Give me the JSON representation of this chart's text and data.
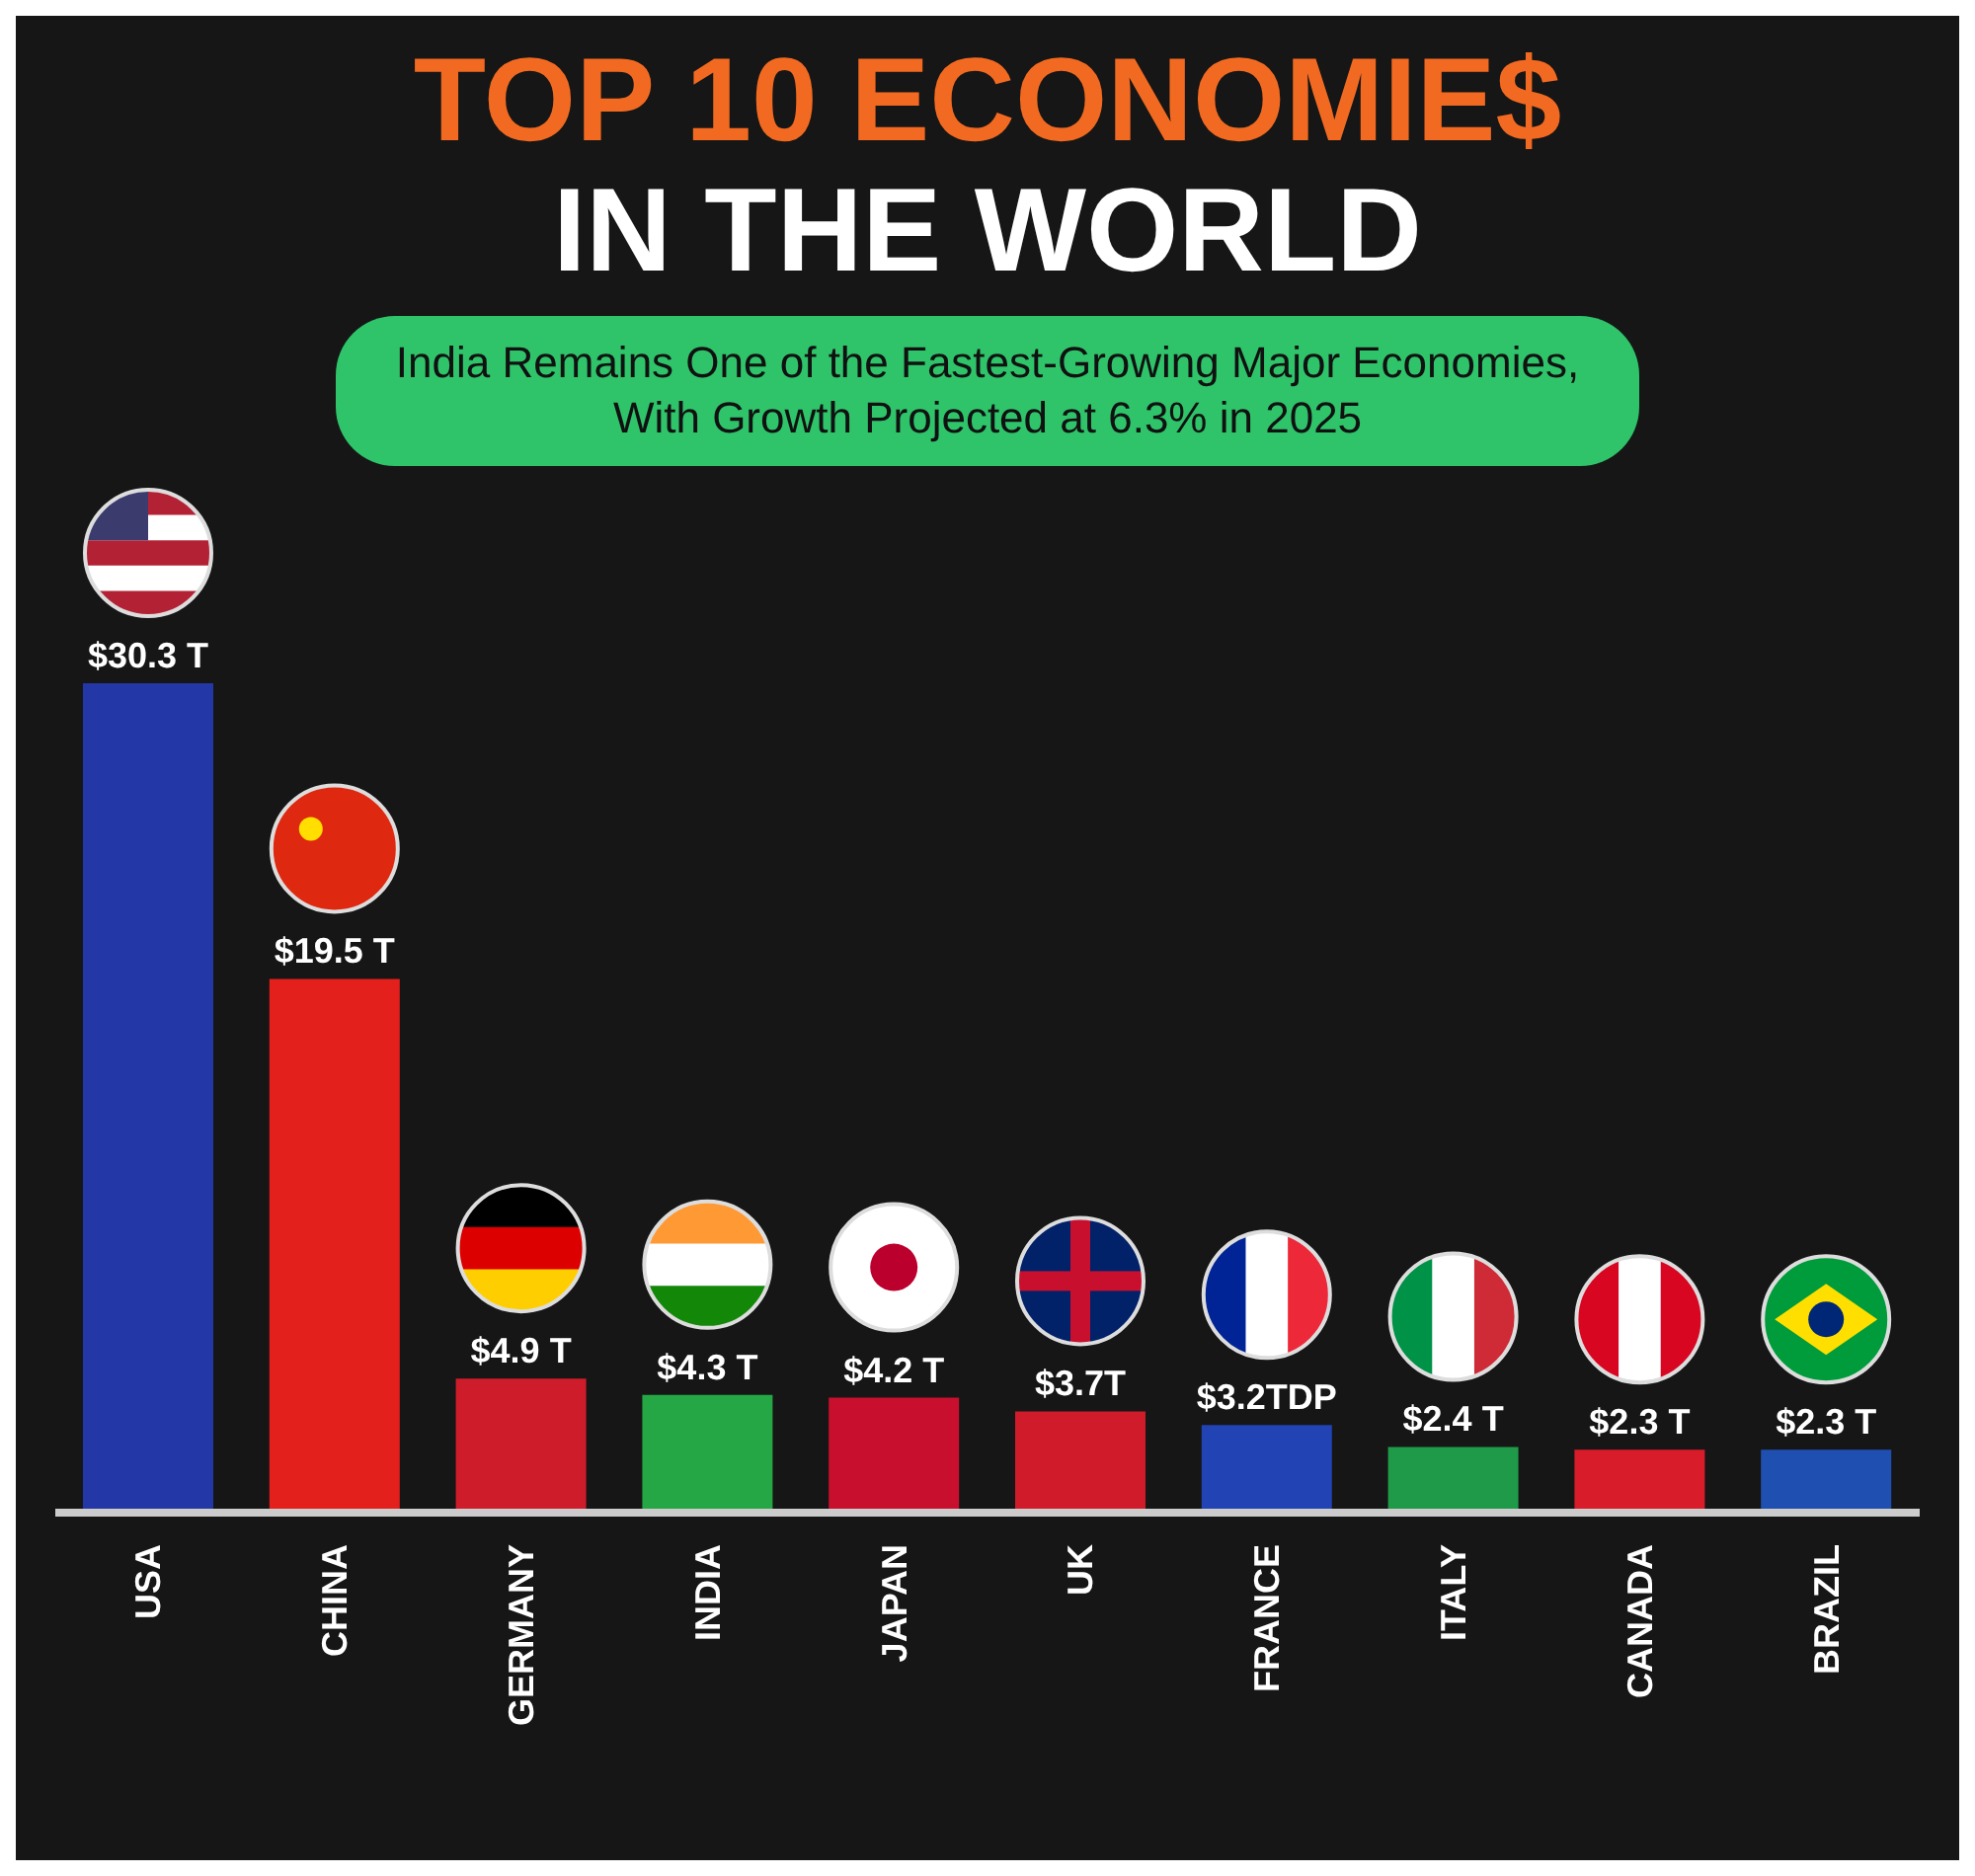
{
  "chart_data": {
    "type": "bar",
    "title": "TOP 10 ECONOMIE$",
    "subtitle": "IN THE WORLD",
    "annotations": [
      "India Remains One of the Fastest-Growing Major Economies, With Growth Projected at 6.3% in 2025"
    ],
    "categories": [
      "USA",
      "CHINA",
      "GERMANY",
      "INDIA",
      "JAPAN",
      "UK",
      "FRANCE",
      "ITALY",
      "CANADA",
      "BRAZIL"
    ],
    "values": [
      30.3,
      19.5,
      4.9,
      4.3,
      4.2,
      3.7,
      3.2,
      2.4,
      2.3,
      2.3
    ],
    "value_labels": [
      "$30.3 T",
      "$19.5 T",
      "$4.9 T",
      "$4.3 T",
      "$4.2 T",
      "$3.7T",
      "$3.2TDP",
      "$2.4 T",
      "$2.3 T",
      "$2.3 T"
    ],
    "colors": [
      "#2338a6",
      "#e3201c",
      "#cf1c2b",
      "#25a745",
      "#c8102e",
      "#d01c2a",
      "#2143b3",
      "#1f9a48",
      "#d81c2a",
      "#1f4fb0"
    ]
  }
}
